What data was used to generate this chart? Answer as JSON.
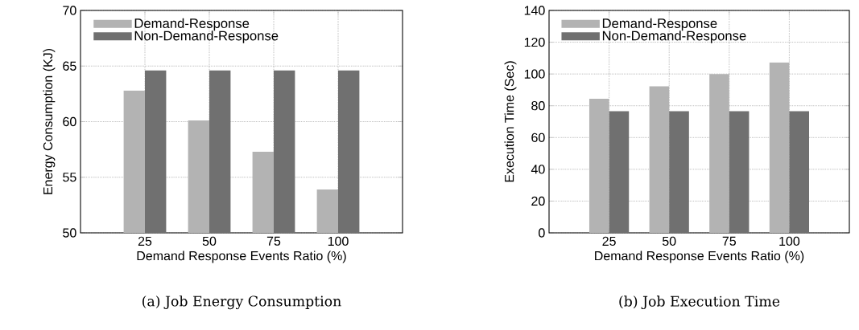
{
  "chart_data": [
    {
      "type": "bar",
      "title": "(a) Job Energy Consumption",
      "xlabel": "Demand Response Events Ratio (%)",
      "ylabel": "Energy Consumption (KJ)",
      "categories": [
        "25",
        "50",
        "75",
        "100"
      ],
      "series": [
        {
          "name": "Demand-Response",
          "color": "#b3b3b3",
          "values": [
            62.8,
            60.1,
            57.3,
            53.9
          ]
        },
        {
          "name": "Non-Demand-Response",
          "color": "#707070",
          "values": [
            64.6,
            64.6,
            64.6,
            64.6
          ]
        }
      ],
      "ylim": [
        50,
        70
      ],
      "yticks": [
        50,
        55,
        60,
        65,
        70
      ],
      "grid": true,
      "legend": "top left"
    },
    {
      "type": "bar",
      "title": "(b) Job Execution Time",
      "xlabel": "Demand Response Events Ratio (%)",
      "ylabel": "Execution Time (Sec)",
      "categories": [
        "25",
        "50",
        "75",
        "100"
      ],
      "series": [
        {
          "name": "Demand-Response",
          "color": "#b3b3b3",
          "values": [
            84.4,
            92.3,
            100,
            107.3
          ]
        },
        {
          "name": "Non-Demand-Response",
          "color": "#707070",
          "values": [
            76.6,
            76.6,
            76.6,
            76.6
          ]
        }
      ],
      "ylim": [
        0,
        140
      ],
      "yticks": [
        0,
        20,
        40,
        60,
        80,
        100,
        120,
        140
      ],
      "grid": true,
      "legend": "top left"
    }
  ]
}
